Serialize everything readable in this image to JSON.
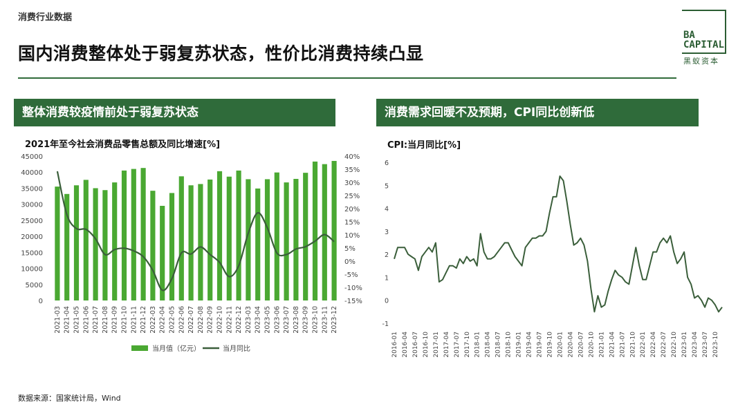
{
  "header": {
    "category": "消费行业数据",
    "title": "国内消费整体处于弱复苏状态，性价比消费持续凸显"
  },
  "logo": {
    "text_line1": "BA",
    "text_line2": "CAPITAL",
    "cn": "黑蚁资本",
    "color": "#2b5d33"
  },
  "left_panel": {
    "header": "整体消费较疫情前处于弱复苏状态",
    "chart_title": "2021年至今社会消费品零售总额及同比增速[%]"
  },
  "right_panel": {
    "header": "消费需求回暖不及预期，CPI同比创新低",
    "chart_title": "CPI:当月同比[%]"
  },
  "colors": {
    "accent": "#2f6b3a",
    "bar": "#4aa832",
    "line": "#3a5e3a"
  },
  "source": "数据来源：国家统计局，Wind",
  "chart_data": [
    {
      "type": "bar",
      "title": "2021年至今社会消费品零售总额及同比增速[%]",
      "categories": [
        "2021-03",
        "2021-04",
        "2021-05",
        "2021-06",
        "2021-07",
        "2021-08",
        "2021-09",
        "2021-10",
        "2021-11",
        "2021-12",
        "2022-03",
        "2022-04",
        "2022-05",
        "2022-06",
        "2022-07",
        "2022-08",
        "2022-09",
        "2022-10",
        "2022-11",
        "2022-12",
        "2023-03",
        "2023-04",
        "2023-05",
        "2023-06",
        "2023-07",
        "2023-08",
        "2023-09",
        "2023-10",
        "2023-11",
        "2023-12"
      ],
      "y_left": {
        "ylim": [
          0,
          45000
        ],
        "ticks": [
          0,
          5000,
          10000,
          15000,
          20000,
          25000,
          30000,
          35000,
          40000,
          45000
        ]
      },
      "y_right": {
        "ylim": [
          -15,
          40
        ],
        "ticks": [
          -15,
          -10,
          -5,
          0,
          5,
          10,
          15,
          20,
          25,
          30,
          35,
          40
        ],
        "unit": "%"
      },
      "series": [
        {
          "name": "当月值（亿元）",
          "type": "bar",
          "axis": "left",
          "values": [
            35500,
            33200,
            35900,
            37600,
            35000,
            34400,
            36800,
            40500,
            41000,
            41300,
            34200,
            29500,
            33500,
            38700,
            35900,
            36300,
            37700,
            40300,
            38600,
            40500,
            37800,
            34900,
            37800,
            39900,
            36800,
            37900,
            39800,
            43300,
            42500,
            43500
          ]
        },
        {
          "name": "当月同比",
          "type": "line",
          "axis": "right",
          "values": [
            34.2,
            17.7,
            12.4,
            12.1,
            8.5,
            2.5,
            4.4,
            4.9,
            3.9,
            1.7,
            -3.5,
            -11.1,
            -6.7,
            3.1,
            2.7,
            5.4,
            2.5,
            -0.5,
            -5.9,
            -1.8,
            10.6,
            18.4,
            12.7,
            3.1,
            2.5,
            4.6,
            5.5,
            7.6,
            10.1,
            7.4
          ]
        }
      ]
    },
    {
      "type": "line",
      "title": "CPI:当月同比[%]",
      "ylim": [
        -1,
        6
      ],
      "y_ticks": [
        -1,
        0,
        1,
        2,
        3,
        4,
        5,
        6
      ],
      "x_tick_labels": [
        "2016-01",
        "2016-04",
        "2016-07",
        "2016-10",
        "2017-01",
        "2017-04",
        "2017-07",
        "2017-10",
        "2018-01",
        "2018-04",
        "2018-07",
        "2018-10",
        "2019-01",
        "2019-04",
        "2019-07",
        "2019-10",
        "2020-01",
        "2020-04",
        "2020-07",
        "2020-10",
        "2021-01",
        "2021-04",
        "2021-07",
        "2021-10",
        "2022-01",
        "2022-04",
        "2022-07",
        "2022-10",
        "2023-01",
        "2023-04",
        "2023-07",
        "2023-10"
      ],
      "series": [
        {
          "name": "CPI当月同比",
          "start": "2016-01",
          "values": [
            1.8,
            2.3,
            2.3,
            2.3,
            2.0,
            1.9,
            1.8,
            1.3,
            1.9,
            2.1,
            2.3,
            2.1,
            2.5,
            0.8,
            0.9,
            1.2,
            1.5,
            1.5,
            1.4,
            1.8,
            1.6,
            1.9,
            1.7,
            1.8,
            1.5,
            2.9,
            2.1,
            1.8,
            1.8,
            1.9,
            2.1,
            2.3,
            2.5,
            2.5,
            2.2,
            1.9,
            1.7,
            1.5,
            2.3,
            2.5,
            2.7,
            2.7,
            2.8,
            2.8,
            3.0,
            3.8,
            4.5,
            4.5,
            5.4,
            5.2,
            4.3,
            3.3,
            2.4,
            2.5,
            2.7,
            2.4,
            1.7,
            0.5,
            -0.5,
            0.2,
            -0.3,
            -0.2,
            0.4,
            0.9,
            1.3,
            1.1,
            1.0,
            0.8,
            0.7,
            1.5,
            2.3,
            1.5,
            0.9,
            0.9,
            1.5,
            2.1,
            2.1,
            2.5,
            2.7,
            2.5,
            2.8,
            2.1,
            1.6,
            1.8,
            2.1,
            1.0,
            0.7,
            0.1,
            0.2,
            0.0,
            -0.3,
            0.1,
            0.0,
            -0.2,
            -0.5,
            -0.3
          ]
        }
      ]
    }
  ]
}
